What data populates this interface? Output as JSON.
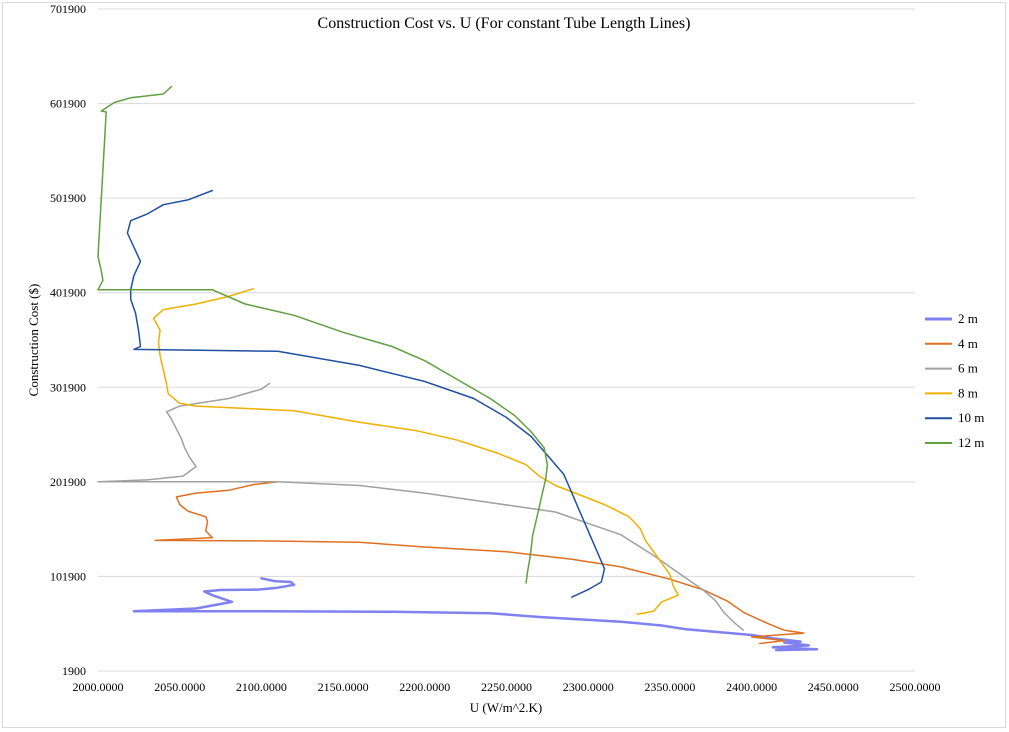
{
  "chart_data": {
    "type": "line",
    "title": "Construction Cost vs. U (For constant Tube Length Lines)",
    "xlabel": "U (W/m^2.K)",
    "ylabel": "Construction Cost ($)",
    "xlim": [
      2000,
      2500
    ],
    "ylim": [
      1900,
      701900
    ],
    "x_tick_labels": [
      "2000.0000",
      "2050.0000",
      "2100.0000",
      "2150.0000",
      "2200.0000",
      "2250.0000",
      "2300.0000",
      "2350.0000",
      "2400.0000",
      "2450.0000",
      "2500.0000"
    ],
    "y_tick_labels": [
      "1900",
      "101900",
      "201900",
      "301900",
      "401900",
      "501900",
      "601900",
      "701900"
    ],
    "grid": "horizontal",
    "legend": "right",
    "series": [
      {
        "name": "2 m",
        "color": "#8080f0",
        "width": 2.5,
        "points": [
          [
            2100,
            99900
          ],
          [
            2108,
            97000
          ],
          [
            2118,
            96000
          ],
          [
            2120,
            93000
          ],
          [
            2110,
            90000
          ],
          [
            2098,
            88000
          ],
          [
            2075,
            87500
          ],
          [
            2065,
            86000
          ],
          [
            2070,
            82000
          ],
          [
            2082,
            75000
          ],
          [
            2060,
            68000
          ],
          [
            2022,
            65000
          ],
          [
            2100,
            65000
          ],
          [
            2180,
            64500
          ],
          [
            2240,
            63000
          ],
          [
            2270,
            59000
          ],
          [
            2320,
            54000
          ],
          [
            2345,
            50000
          ],
          [
            2360,
            46000
          ],
          [
            2380,
            43000
          ],
          [
            2400,
            40000
          ],
          [
            2415,
            36000
          ],
          [
            2430,
            33000
          ],
          [
            2420,
            32000
          ],
          [
            2435,
            29000
          ],
          [
            2413,
            27000
          ],
          [
            2440,
            25000
          ],
          [
            2415,
            24000
          ]
        ]
      },
      {
        "name": "4 m",
        "color": "#e07020",
        "width": 1.5,
        "points": [
          [
            2110,
            202000
          ],
          [
            2095,
            199000
          ],
          [
            2080,
            193000
          ],
          [
            2060,
            190000
          ],
          [
            2048,
            186000
          ],
          [
            2050,
            178000
          ],
          [
            2055,
            171000
          ],
          [
            2066,
            165000
          ],
          [
            2067,
            160000
          ],
          [
            2066,
            150000
          ],
          [
            2070,
            143000
          ],
          [
            2060,
            142000
          ],
          [
            2035,
            140000
          ],
          [
            2100,
            139500
          ],
          [
            2160,
            138000
          ],
          [
            2200,
            133000
          ],
          [
            2250,
            128000
          ],
          [
            2290,
            120000
          ],
          [
            2320,
            112000
          ],
          [
            2350,
            99000
          ],
          [
            2370,
            88000
          ],
          [
            2385,
            76000
          ],
          [
            2395,
            64000
          ],
          [
            2410,
            52000
          ],
          [
            2420,
            45000
          ],
          [
            2432,
            42000
          ],
          [
            2400,
            38000
          ],
          [
            2420,
            34000
          ],
          [
            2405,
            31000
          ]
        ]
      },
      {
        "name": "6 m",
        "color": "#a0a0a0",
        "width": 1.5,
        "points": [
          [
            2105,
            306000
          ],
          [
            2100,
            300000
          ],
          [
            2080,
            290000
          ],
          [
            2050,
            282000
          ],
          [
            2042,
            276000
          ],
          [
            2045,
            268000
          ],
          [
            2048,
            258000
          ],
          [
            2051,
            248000
          ],
          [
            2053,
            238000
          ],
          [
            2056,
            228000
          ],
          [
            2060,
            218000
          ],
          [
            2052,
            208000
          ],
          [
            2030,
            204000
          ],
          [
            2000,
            202000
          ],
          [
            2060,
            202000
          ],
          [
            2110,
            202000
          ],
          [
            2160,
            198000
          ],
          [
            2200,
            190000
          ],
          [
            2240,
            180000
          ],
          [
            2280,
            170000
          ],
          [
            2300,
            158000
          ],
          [
            2320,
            146000
          ],
          [
            2330,
            135000
          ],
          [
            2340,
            124000
          ],
          [
            2350,
            112000
          ],
          [
            2360,
            100000
          ],
          [
            2370,
            88000
          ],
          [
            2378,
            76000
          ],
          [
            2383,
            64000
          ],
          [
            2390,
            52000
          ],
          [
            2395,
            45000
          ]
        ]
      },
      {
        "name": "8 m",
        "color": "#f0b000",
        "width": 1.5,
        "points": [
          [
            2095,
            406000
          ],
          [
            2080,
            398000
          ],
          [
            2060,
            390000
          ],
          [
            2040,
            384000
          ],
          [
            2034,
            375000
          ],
          [
            2038,
            362000
          ],
          [
            2037,
            350000
          ],
          [
            2038,
            335000
          ],
          [
            2040,
            320000
          ],
          [
            2042,
            305000
          ],
          [
            2043,
            295000
          ],
          [
            2050,
            285000
          ],
          [
            2060,
            282000
          ],
          [
            2120,
            277000
          ],
          [
            2160,
            265000
          ],
          [
            2195,
            256000
          ],
          [
            2220,
            246000
          ],
          [
            2245,
            232000
          ],
          [
            2262,
            220000
          ],
          [
            2270,
            208000
          ],
          [
            2280,
            198000
          ],
          [
            2295,
            188000
          ],
          [
            2310,
            178000
          ],
          [
            2325,
            165000
          ],
          [
            2332,
            152000
          ],
          [
            2335,
            140000
          ],
          [
            2340,
            128000
          ],
          [
            2345,
            116000
          ],
          [
            2350,
            104000
          ],
          [
            2352,
            92000
          ],
          [
            2355,
            82000
          ],
          [
            2345,
            75000
          ],
          [
            2340,
            65000
          ],
          [
            2330,
            62000
          ]
        ]
      },
      {
        "name": "10 m",
        "color": "#2050a0",
        "width": 1.5,
        "points": [
          [
            2070,
            510000
          ],
          [
            2055,
            500000
          ],
          [
            2040,
            495000
          ],
          [
            2030,
            485000
          ],
          [
            2020,
            478000
          ],
          [
            2018,
            465000
          ],
          [
            2022,
            450000
          ],
          [
            2026,
            435000
          ],
          [
            2022,
            420000
          ],
          [
            2020,
            405000
          ],
          [
            2020,
            395000
          ],
          [
            2023,
            380000
          ],
          [
            2025,
            360000
          ],
          [
            2026,
            345000
          ],
          [
            2022,
            342000
          ],
          [
            2110,
            340000
          ],
          [
            2160,
            325000
          ],
          [
            2200,
            308000
          ],
          [
            2230,
            290000
          ],
          [
            2250,
            270000
          ],
          [
            2265,
            250000
          ],
          [
            2275,
            230000
          ],
          [
            2285,
            210000
          ],
          [
            2290,
            190000
          ],
          [
            2295,
            170000
          ],
          [
            2300,
            150000
          ],
          [
            2305,
            130000
          ],
          [
            2310,
            110000
          ],
          [
            2308,
            96000
          ],
          [
            2300,
            88000
          ],
          [
            2290,
            80000
          ]
        ]
      },
      {
        "name": "12 m",
        "color": "#60a040",
        "width": 1.5,
        "points": [
          [
            2045,
            620000
          ],
          [
            2040,
            612000
          ],
          [
            2020,
            608000
          ],
          [
            2010,
            603000
          ],
          [
            2002,
            594000
          ],
          [
            2005,
            593000
          ],
          [
            2000,
            440000
          ],
          [
            2002,
            425000
          ],
          [
            2003,
            415000
          ],
          [
            2000,
            405000
          ],
          [
            2070,
            405000
          ],
          [
            2090,
            390000
          ],
          [
            2120,
            378000
          ],
          [
            2150,
            360000
          ],
          [
            2180,
            345000
          ],
          [
            2200,
            330000
          ],
          [
            2220,
            310000
          ],
          [
            2240,
            290000
          ],
          [
            2255,
            272000
          ],
          [
            2265,
            255000
          ],
          [
            2273,
            238000
          ],
          [
            2275,
            220000
          ],
          [
            2274,
            205000
          ],
          [
            2272,
            190000
          ],
          [
            2270,
            175000
          ],
          [
            2268,
            160000
          ],
          [
            2266,
            145000
          ],
          [
            2265,
            130000
          ],
          [
            2264,
            118000
          ],
          [
            2263,
            108000
          ],
          [
            2262,
            95000
          ]
        ]
      }
    ]
  }
}
